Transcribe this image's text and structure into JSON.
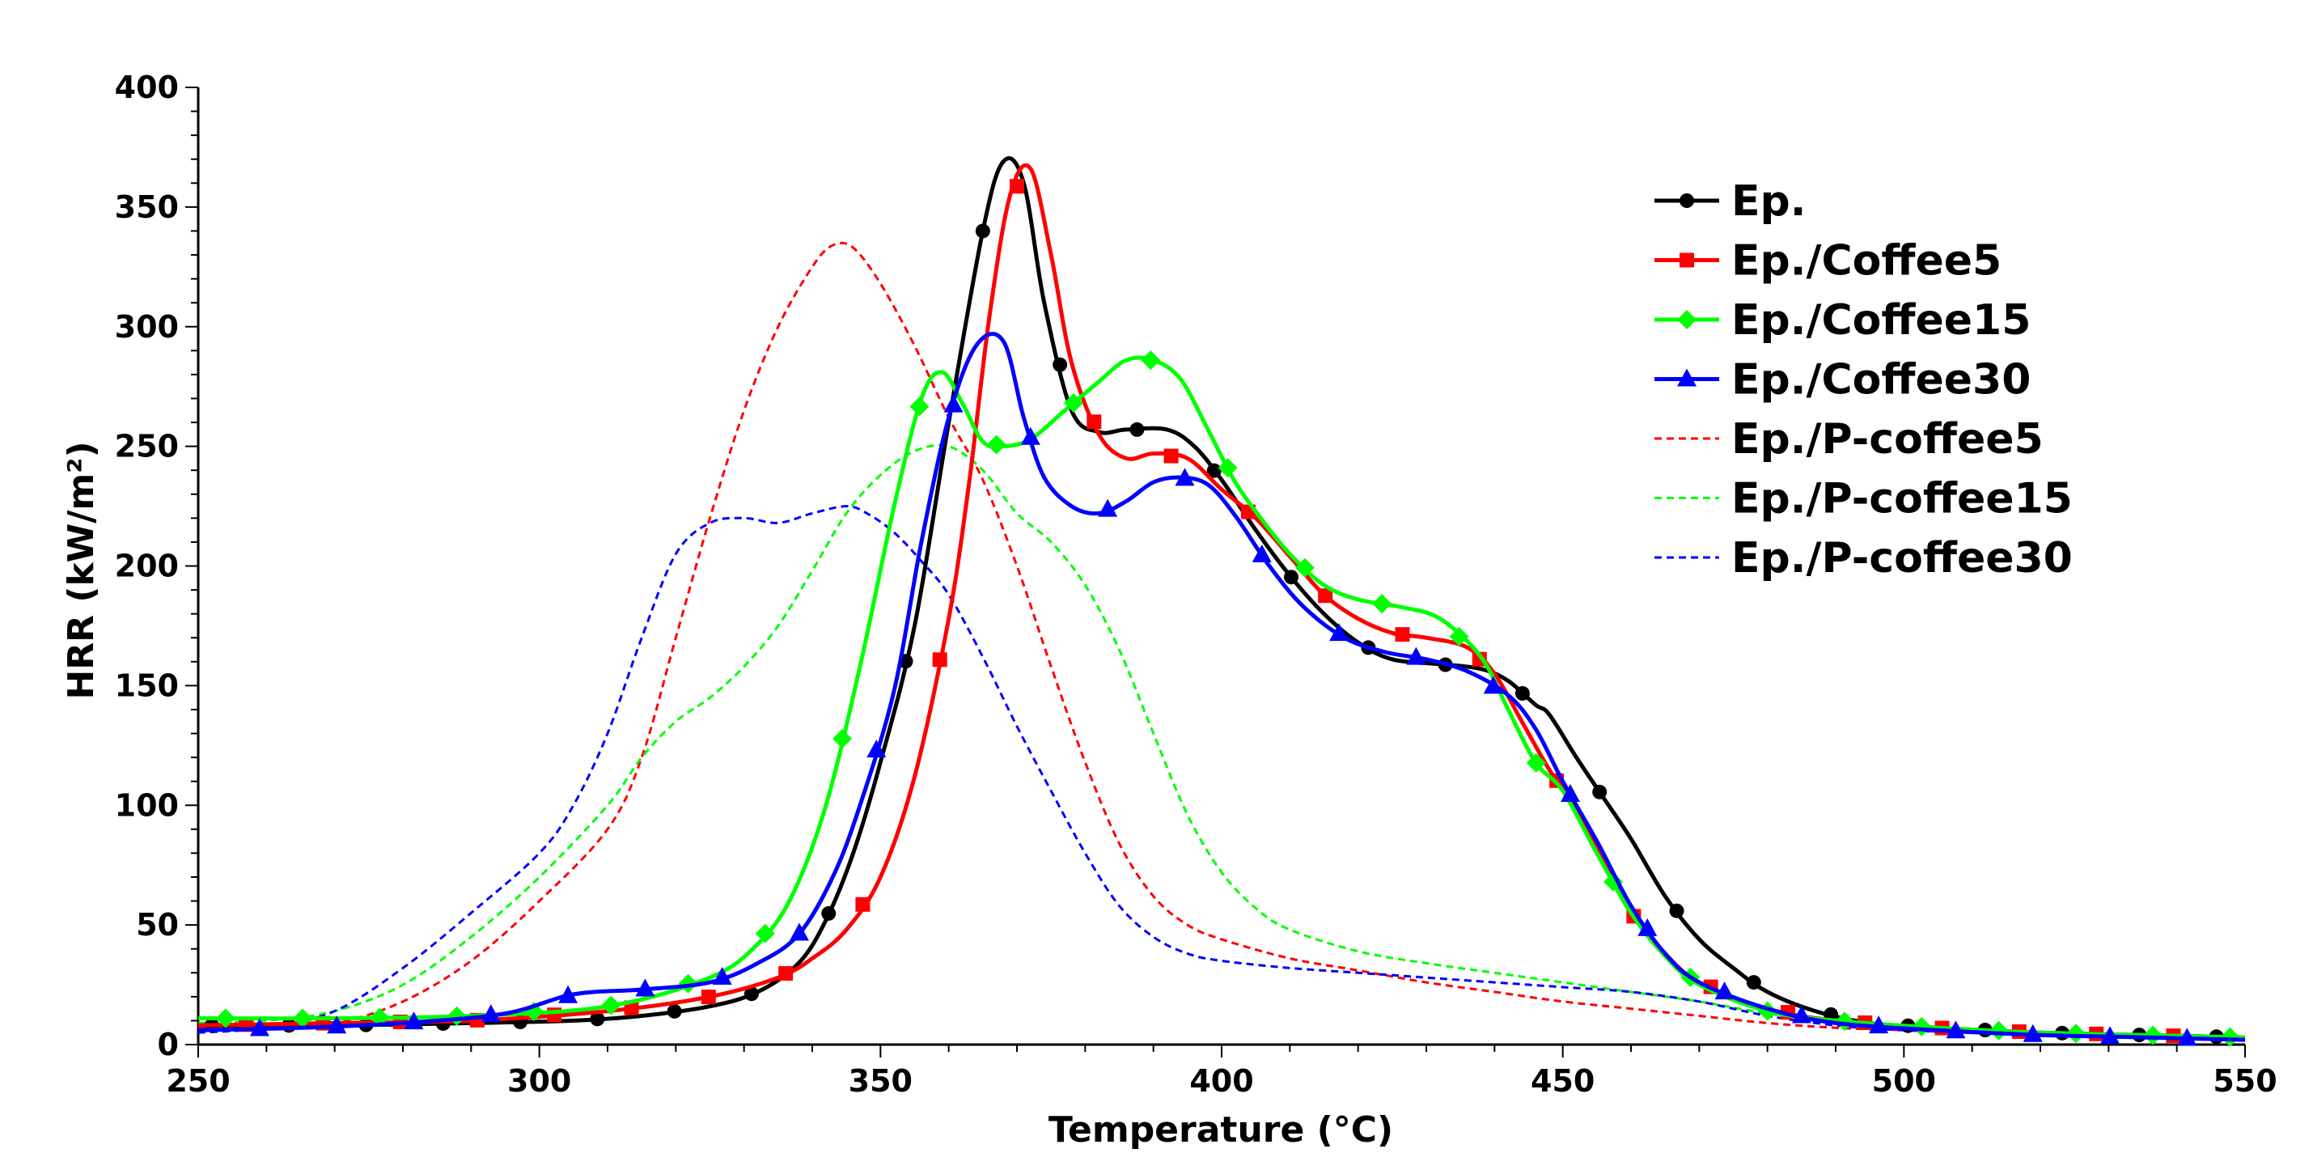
{
  "chart_data": {
    "type": "line",
    "title": "",
    "xlabel": "Temperature (°C)",
    "ylabel": "HRR (kW/m²)",
    "xlim": [
      250,
      550
    ],
    "ylim": [
      0,
      400
    ],
    "xticks": [
      250,
      300,
      350,
      400,
      450,
      500,
      550
    ],
    "yticks": [
      0,
      50,
      100,
      150,
      200,
      250,
      300,
      350,
      400
    ],
    "legend_position": "top-right",
    "series": [
      {
        "name": "Ep.",
        "color": "#000000",
        "style": "solid",
        "marker": "circle",
        "x": [
          250,
          270,
          290,
          305,
          315,
          325,
          332,
          338,
          342,
          346,
          350,
          355,
          360,
          365,
          368,
          371,
          374,
          378,
          382,
          386,
          392,
          396,
          400,
          405,
          410,
          415,
          420,
          425,
          432,
          438,
          442,
          446,
          448,
          452,
          456,
          460,
          465,
          470,
          475,
          480,
          487,
          495,
          505,
          520,
          535,
          550
        ],
        "y": [
          8,
          8,
          9,
          10,
          12,
          16,
          22,
          34,
          52,
          80,
          118,
          175,
          260,
          340,
          369,
          360,
          310,
          265,
          256,
          257,
          257,
          250,
          236,
          215,
          196,
          180,
          168,
          161,
          159,
          157,
          152,
          142,
          138,
          120,
          103,
          86,
          62,
          44,
          32,
          22,
          14,
          9,
          7,
          5,
          4,
          3
        ]
      },
      {
        "name": "Ep./Coffee5",
        "color": "#ff0000",
        "style": "solid",
        "marker": "square",
        "x": [
          250,
          270,
          290,
          310,
          325,
          335,
          340,
          345,
          350,
          355,
          360,
          363,
          366,
          369,
          372,
          375,
          378,
          382,
          386,
          390,
          395,
          400,
          405,
          410,
          415,
          420,
          425,
          430,
          436,
          440,
          444,
          448,
          452,
          456,
          460,
          465,
          470,
          480,
          490,
          505,
          520,
          535,
          550
        ],
        "y": [
          8,
          9,
          10,
          14,
          20,
          28,
          36,
          48,
          70,
          112,
          178,
          235,
          305,
          355,
          366,
          330,
          285,
          255,
          245,
          247,
          245,
          232,
          220,
          204,
          188,
          178,
          172,
          170,
          166,
          155,
          135,
          115,
          98,
          76,
          55,
          38,
          26,
          15,
          10,
          7,
          5,
          4,
          3
        ]
      },
      {
        "name": "Ep./Coffee15",
        "color": "#00ff00",
        "style": "solid",
        "marker": "diamond",
        "x": [
          250,
          270,
          290,
          310,
          325,
          332,
          337,
          342,
          347,
          352,
          356,
          359,
          362,
          365,
          368,
          372,
          377,
          382,
          386,
          390,
          394,
          398,
          402,
          406,
          410,
          415,
          420,
          426,
          432,
          438,
          442,
          446,
          450,
          455,
          460,
          465,
          470,
          480,
          490,
          505,
          520,
          535,
          550
        ],
        "y": [
          11,
          11,
          12,
          16,
          28,
          42,
          62,
          100,
          158,
          225,
          270,
          281,
          268,
          252,
          250,
          253,
          265,
          277,
          286,
          286,
          278,
          257,
          235,
          219,
          205,
          192,
          186,
          183,
          178,
          162,
          140,
          118,
          106,
          80,
          55,
          37,
          25,
          14,
          10,
          7,
          5,
          4,
          3
        ]
      },
      {
        "name": "Ep./Coffee30",
        "color": "#0000ff",
        "style": "solid",
        "marker": "triangle",
        "x": [
          250,
          265,
          280,
          295,
          305,
          315,
          325,
          332,
          338,
          343,
          347,
          352,
          356,
          360,
          364,
          368,
          371,
          374,
          378,
          382,
          386,
          390,
          394,
          398,
          402,
          407,
          412,
          418,
          424,
          430,
          436,
          442,
          446,
          450,
          455,
          460,
          465,
          470,
          480,
          490,
          505,
          520,
          535,
          550
        ],
        "y": [
          6,
          7,
          9,
          13,
          21,
          23,
          26,
          34,
          46,
          70,
          100,
          148,
          210,
          262,
          292,
          294,
          262,
          237,
          225,
          222,
          227,
          235,
          237,
          234,
          221,
          200,
          183,
          170,
          164,
          161,
          156,
          146,
          132,
          110,
          85,
          58,
          38,
          26,
          15,
          9,
          6,
          4,
          3,
          2
        ]
      },
      {
        "name": "Ep./P-coffee5",
        "color": "#ff0000",
        "style": "dashed",
        "marker": "none",
        "x": [
          250,
          260,
          270,
          280,
          290,
          300,
          310,
          315,
          320,
          325,
          330,
          335,
          340,
          343,
          346,
          350,
          355,
          360,
          365,
          370,
          375,
          380,
          385,
          390,
          395,
          400,
          410,
          420,
          430,
          440,
          450,
          460,
          470,
          480,
          490,
          500,
          520,
          550
        ],
        "y": [
          7,
          8,
          9,
          18,
          35,
          60,
          90,
          120,
          170,
          220,
          265,
          300,
          325,
          334,
          333,
          318,
          292,
          262,
          236,
          200,
          158,
          118,
          84,
          62,
          50,
          44,
          36,
          31,
          26,
          22,
          18,
          15,
          12,
          9,
          7,
          6,
          4,
          3
        ]
      },
      {
        "name": "Ep./P-coffee15",
        "color": "#00ff00",
        "style": "dashed",
        "marker": "none",
        "x": [
          250,
          260,
          270,
          280,
          290,
          300,
          310,
          315,
          320,
          325,
          330,
          335,
          340,
          345,
          350,
          355,
          360,
          365,
          370,
          375,
          380,
          385,
          390,
          395,
          400,
          405,
          410,
          420,
          430,
          440,
          450,
          460,
          470,
          480,
          490,
          500,
          520,
          550
        ],
        "y": [
          9,
          10,
          14,
          25,
          45,
          70,
          100,
          120,
          135,
          145,
          158,
          175,
          198,
          222,
          238,
          248,
          250,
          240,
          222,
          210,
          192,
          165,
          130,
          96,
          72,
          57,
          48,
          39,
          34,
          30,
          26,
          22,
          18,
          13,
          9,
          7,
          5,
          3
        ]
      },
      {
        "name": "Ep./P-coffee30",
        "color": "#0000ff",
        "style": "dashed",
        "marker": "none",
        "x": [
          250,
          260,
          270,
          280,
          290,
          300,
          305,
          310,
          315,
          320,
          325,
          330,
          335,
          340,
          345,
          348,
          352,
          356,
          360,
          365,
          370,
          375,
          380,
          385,
          390,
          395,
          400,
          410,
          420,
          430,
          440,
          450,
          460,
          470,
          480,
          490,
          500,
          520,
          550
        ],
        "y": [
          5,
          7,
          14,
          32,
          55,
          80,
          100,
          130,
          170,
          205,
          218,
          220,
          218,
          222,
          225,
          222,
          214,
          202,
          188,
          162,
          133,
          106,
          80,
          58,
          45,
          38,
          35,
          32,
          30,
          28,
          26,
          24,
          22,
          18,
          12,
          8,
          6,
          4,
          2
        ]
      }
    ]
  }
}
